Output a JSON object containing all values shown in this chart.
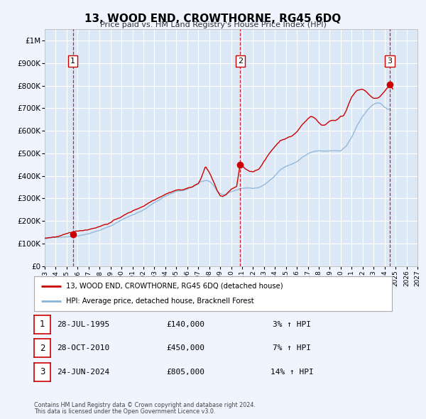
{
  "title": "13, WOOD END, CROWTHORNE, RG45 6DQ",
  "subtitle": "Price paid vs. HM Land Registry's House Price Index (HPI)",
  "xlim": [
    1993.0,
    2027.0
  ],
  "ylim": [
    0,
    1050000
  ],
  "yticks": [
    0,
    100000,
    200000,
    300000,
    400000,
    500000,
    600000,
    700000,
    800000,
    900000,
    1000000
  ],
  "ytick_labels": [
    "£0",
    "£100K",
    "£200K",
    "£300K",
    "£400K",
    "£500K",
    "£600K",
    "£700K",
    "£800K",
    "£900K",
    "£1M"
  ],
  "xtick_years": [
    1993,
    1994,
    1995,
    1996,
    1997,
    1998,
    1999,
    2000,
    2001,
    2002,
    2003,
    2004,
    2005,
    2006,
    2007,
    2008,
    2009,
    2010,
    2011,
    2012,
    2013,
    2014,
    2015,
    2016,
    2017,
    2018,
    2019,
    2020,
    2021,
    2022,
    2023,
    2024,
    2025,
    2026,
    2027
  ],
  "plot_bg_color": "#dce8f5",
  "fig_bg_color": "#f0f4ff",
  "grid_color": "#ffffff",
  "sale_color": "#cc0000",
  "hpi_color": "#8ab4d8",
  "vline_color": "#cc0000",
  "sale_points": [
    {
      "year": 1995.57,
      "value": 140000,
      "label": "1"
    },
    {
      "year": 2010.83,
      "value": 450000,
      "label": "2"
    },
    {
      "year": 2024.48,
      "value": 805000,
      "label": "3"
    }
  ],
  "legend_sale_label": "13, WOOD END, CROWTHORNE, RG45 6DQ (detached house)",
  "legend_hpi_label": "HPI: Average price, detached house, Bracknell Forest",
  "table_rows": [
    {
      "num": "1",
      "date": "28-JUL-1995",
      "price": "£140,000",
      "change": "3% ↑ HPI"
    },
    {
      "num": "2",
      "date": "28-OCT-2010",
      "price": "£450,000",
      "change": "7% ↑ HPI"
    },
    {
      "num": "3",
      "date": "24-JUN-2024",
      "price": "£805,000",
      "change": "14% ↑ HPI"
    }
  ],
  "footer1": "Contains HM Land Registry data © Crown copyright and database right 2024.",
  "footer2": "This data is licensed under the Open Government Licence v3.0."
}
